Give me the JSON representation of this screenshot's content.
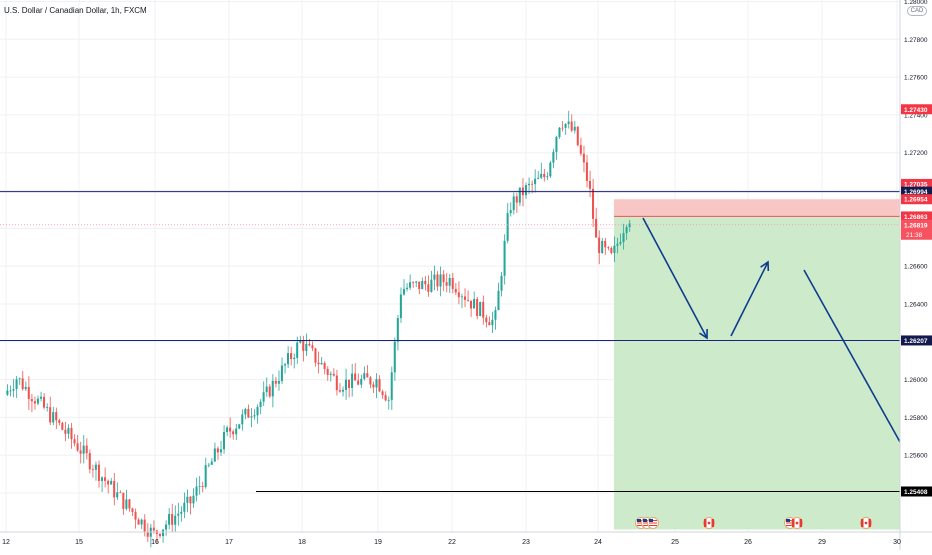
{
  "header": {
    "symbol_title": "U.S. Dollar / Canadian Dollar, 1h, FXCM",
    "currency": "CAD"
  },
  "chart_data": {
    "type": "candlestick",
    "y_ticks": [
      "1.28000",
      "1.27800",
      "1.27600",
      "1.27400",
      "1.27200",
      "1.27000",
      "1.26800",
      "1.26600",
      "1.26400",
      "1.26200",
      "1.26000",
      "1.25800",
      "1.25600",
      "1.25400"
    ],
    "ylim": [
      1.2508,
      1.2802
    ],
    "x_ticks": [
      "12",
      "15",
      "16",
      "17",
      "18",
      "19",
      "22",
      "23",
      "24",
      "25",
      "26",
      "29",
      "30"
    ],
    "grid": true,
    "price_path": [
      {
        "x": "12",
        "y": 1.2592
      },
      {
        "x": "12.5",
        "y": 1.2601
      },
      {
        "x": "15",
        "y": 1.2565
      },
      {
        "x": "15.5",
        "y": 1.254
      },
      {
        "x": "16",
        "y": 1.2518
      },
      {
        "x": "16.5",
        "y": 1.2535
      },
      {
        "x": "17",
        "y": 1.2572
      },
      {
        "x": "17.5",
        "y": 1.259
      },
      {
        "x": "18",
        "y": 1.262
      },
      {
        "x": "18.5",
        "y": 1.2598
      },
      {
        "x": "19",
        "y": 1.26
      },
      {
        "x": "19.5",
        "y": 1.259
      },
      {
        "x": "20",
        "y": 1.2648
      },
      {
        "x": "22",
        "y": 1.2653
      },
      {
        "x": "22.3",
        "y": 1.264
      },
      {
        "x": "22.6",
        "y": 1.263
      },
      {
        "x": "22.8",
        "y": 1.2692
      },
      {
        "x": "23",
        "y": 1.27
      },
      {
        "x": "23.3",
        "y": 1.2708
      },
      {
        "x": "23.5",
        "y": 1.2738
      },
      {
        "x": "23.7",
        "y": 1.273
      },
      {
        "x": "23.9",
        "y": 1.2702
      },
      {
        "x": "24",
        "y": 1.2672
      },
      {
        "x": "24.2",
        "y": 1.2664
      },
      {
        "x": "24.4",
        "y": 1.2686
      }
    ],
    "horizontal_lines": [
      {
        "price": "1.26994",
        "color": "#1a237e"
      },
      {
        "price": "1.26207",
        "color": "#1a237e"
      },
      {
        "price": "1.25408",
        "color": "#000000"
      },
      {
        "price": "1.26819",
        "color": "#f48fb1"
      }
    ],
    "price_labels": [
      {
        "text": "1.27430",
        "bg": "#f23645",
        "fg": "#ffffff"
      },
      {
        "text": "1.27035",
        "bg": "#f23645",
        "fg": "#ffffff"
      },
      {
        "text": "1.26994",
        "bg": "#131a4d",
        "fg": "#ffffff"
      },
      {
        "text": "1.26954",
        "bg": "#f23645",
        "fg": "#ffffff"
      },
      {
        "text": "1.26863",
        "bg": "#f23645",
        "fg": "#ffffff"
      },
      {
        "text": "1.26819",
        "bg": "#f7525f",
        "fg": "#ffffff",
        "sub": "21:38"
      },
      {
        "text": "1.26207",
        "bg": "#131a4d",
        "fg": "#ffffff"
      },
      {
        "text": "1.25408",
        "bg": "#000000",
        "fg": "#ffffff"
      }
    ],
    "short_position": {
      "stop_zone_color": "#f9c6c6",
      "target_zone_color": "#cdebcb"
    },
    "projection_color": "#0d3c8f",
    "event_flags": [
      "us-flag-icon",
      "ca-flag-icon",
      "us-flag-icon",
      "ca-flag-icon"
    ],
    "colors": {
      "up": "#26a69a",
      "down": "#ef5350",
      "grid": "#eef0f3",
      "axis_text": "#131722"
    }
  }
}
